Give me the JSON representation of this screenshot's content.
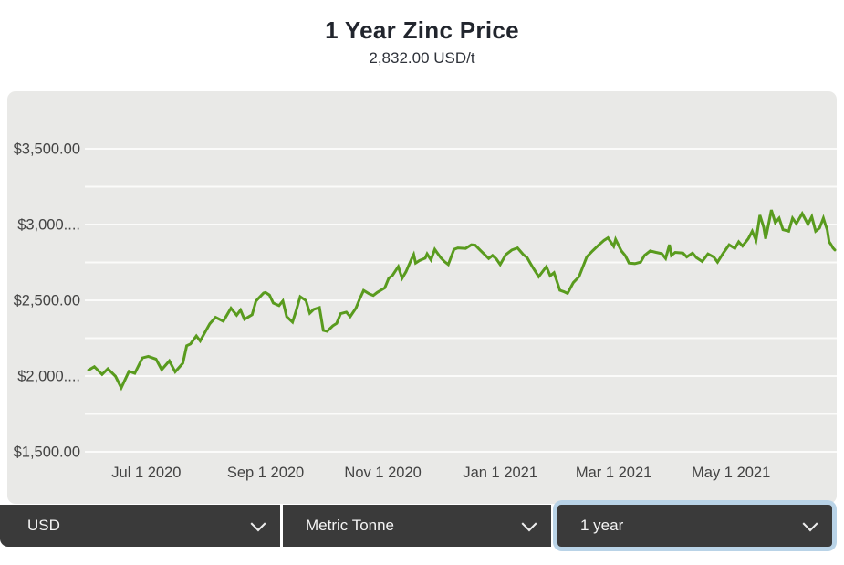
{
  "header": {
    "title": "1 Year Zinc Price",
    "subtitle": "2,832.00 USD/t"
  },
  "controls": {
    "currency": {
      "value": "USD"
    },
    "unit": {
      "value": "Metric Tonne"
    },
    "range": {
      "value": "1 year",
      "focused": true
    }
  },
  "colors": {
    "line": "#599b1e",
    "panel_bg": "#e9e9e7",
    "gridline": "#fbfbfa",
    "axis_text": "#434343",
    "title_text": "#21252d",
    "control_bg": "#3a3a3a",
    "control_text": "#f4f4f4",
    "focus_ring": "#b9d3e7"
  },
  "chart_data": {
    "type": "line",
    "title": "1 Year Zinc Price",
    "subtitle": "2,832.00 USD/t",
    "ylabel": "",
    "xlabel": "",
    "unit": "USD/t",
    "current_value": 2832.0,
    "ylim": [
      1500,
      3500
    ],
    "grid": true,
    "legend": "none",
    "grid_values": [
      3500,
      3250,
      3000,
      2750,
      2500,
      2250,
      2000,
      1750,
      1500
    ],
    "y_ticks": [
      {
        "value": 3500,
        "label": "$3,500.00"
      },
      {
        "value": 3000,
        "label": "$3,000...."
      },
      {
        "value": 2500,
        "label": "$2,500.00"
      },
      {
        "value": 2000,
        "label": "$2,000...."
      },
      {
        "value": 1500,
        "label": "$1,500.00"
      }
    ],
    "x_ticks": [
      {
        "date": "2020-07-01",
        "label": "Jul 1 2020"
      },
      {
        "date": "2020-09-01",
        "label": "Sep 1 2020"
      },
      {
        "date": "2020-11-01",
        "label": "Nov 1 2020"
      },
      {
        "date": "2021-01-01",
        "label": "Jan 1 2021"
      },
      {
        "date": "2021-03-01",
        "label": "Mar 1 2021"
      },
      {
        "date": "2021-05-01",
        "label": "May 1 2021"
      }
    ],
    "x_range": [
      "2020-05-31",
      "2021-06-24"
    ],
    "series": [
      {
        "name": "Zinc Price (USD/t)",
        "points": [
          [
            "2020-06-01",
            2040
          ],
          [
            "2020-06-04",
            2062
          ],
          [
            "2020-06-08",
            2010
          ],
          [
            "2020-06-11",
            2048
          ],
          [
            "2020-06-15",
            1998
          ],
          [
            "2020-06-18",
            1922
          ],
          [
            "2020-06-22",
            2032
          ],
          [
            "2020-06-25",
            2018
          ],
          [
            "2020-06-29",
            2120
          ],
          [
            "2020-07-02",
            2130
          ],
          [
            "2020-07-06",
            2112
          ],
          [
            "2020-07-09",
            2042
          ],
          [
            "2020-07-13",
            2100
          ],
          [
            "2020-07-16",
            2028
          ],
          [
            "2020-07-20",
            2085
          ],
          [
            "2020-07-22",
            2200
          ],
          [
            "2020-07-24",
            2212
          ],
          [
            "2020-07-27",
            2265
          ],
          [
            "2020-07-29",
            2232
          ],
          [
            "2020-08-03",
            2345
          ],
          [
            "2020-08-06",
            2388
          ],
          [
            "2020-08-10",
            2362
          ],
          [
            "2020-08-12",
            2405
          ],
          [
            "2020-08-14",
            2448
          ],
          [
            "2020-08-17",
            2402
          ],
          [
            "2020-08-19",
            2436
          ],
          [
            "2020-08-21",
            2375
          ],
          [
            "2020-08-25",
            2405
          ],
          [
            "2020-08-27",
            2495
          ],
          [
            "2020-08-31",
            2548
          ],
          [
            "2020-09-01",
            2552
          ],
          [
            "2020-09-03",
            2535
          ],
          [
            "2020-09-05",
            2482
          ],
          [
            "2020-09-08",
            2465
          ],
          [
            "2020-09-10",
            2496
          ],
          [
            "2020-09-12",
            2392
          ],
          [
            "2020-09-15",
            2356
          ],
          [
            "2020-09-17",
            2436
          ],
          [
            "2020-09-19",
            2524
          ],
          [
            "2020-09-22",
            2498
          ],
          [
            "2020-09-24",
            2415
          ],
          [
            "2020-09-26",
            2440
          ],
          [
            "2020-09-29",
            2452
          ],
          [
            "2020-10-01",
            2302
          ],
          [
            "2020-10-03",
            2295
          ],
          [
            "2020-10-06",
            2332
          ],
          [
            "2020-10-08",
            2348
          ],
          [
            "2020-10-10",
            2412
          ],
          [
            "2020-10-13",
            2422
          ],
          [
            "2020-10-15",
            2392
          ],
          [
            "2020-10-18",
            2448
          ],
          [
            "2020-10-20",
            2510
          ],
          [
            "2020-10-22",
            2565
          ],
          [
            "2020-10-25",
            2542
          ],
          [
            "2020-10-27",
            2532
          ],
          [
            "2020-10-29",
            2552
          ],
          [
            "2020-11-02",
            2582
          ],
          [
            "2020-11-04",
            2645
          ],
          [
            "2020-11-06",
            2665
          ],
          [
            "2020-11-09",
            2722
          ],
          [
            "2020-11-11",
            2645
          ],
          [
            "2020-11-13",
            2688
          ],
          [
            "2020-11-16",
            2775
          ],
          [
            "2020-11-17",
            2802
          ],
          [
            "2020-11-18",
            2746
          ],
          [
            "2020-11-20",
            2762
          ],
          [
            "2020-11-23",
            2778
          ],
          [
            "2020-11-24",
            2806
          ],
          [
            "2020-11-26",
            2766
          ],
          [
            "2020-11-28",
            2836
          ],
          [
            "2020-12-01",
            2782
          ],
          [
            "2020-12-03",
            2756
          ],
          [
            "2020-12-05",
            2736
          ],
          [
            "2020-12-08",
            2836
          ],
          [
            "2020-12-10",
            2846
          ],
          [
            "2020-12-14",
            2842
          ],
          [
            "2020-12-17",
            2866
          ],
          [
            "2020-12-19",
            2864
          ],
          [
            "2020-12-22",
            2826
          ],
          [
            "2020-12-26",
            2776
          ],
          [
            "2020-12-28",
            2796
          ],
          [
            "2020-12-30",
            2772
          ],
          [
            "2021-01-01",
            2736
          ],
          [
            "2021-01-04",
            2802
          ],
          [
            "2021-01-07",
            2832
          ],
          [
            "2021-01-10",
            2846
          ],
          [
            "2021-01-13",
            2802
          ],
          [
            "2021-01-15",
            2782
          ],
          [
            "2021-01-18",
            2716
          ],
          [
            "2021-01-21",
            2656
          ],
          [
            "2021-01-25",
            2722
          ],
          [
            "2021-01-27",
            2662
          ],
          [
            "2021-01-29",
            2682
          ],
          [
            "2021-02-01",
            2566
          ],
          [
            "2021-02-03",
            2558
          ],
          [
            "2021-02-05",
            2546
          ],
          [
            "2021-02-08",
            2616
          ],
          [
            "2021-02-11",
            2656
          ],
          [
            "2021-02-15",
            2786
          ],
          [
            "2021-02-18",
            2826
          ],
          [
            "2021-02-21",
            2862
          ],
          [
            "2021-02-24",
            2896
          ],
          [
            "2021-02-26",
            2912
          ],
          [
            "2021-03-01",
            2856
          ],
          [
            "2021-03-02",
            2902
          ],
          [
            "2021-03-05",
            2826
          ],
          [
            "2021-03-07",
            2796
          ],
          [
            "2021-03-09",
            2746
          ],
          [
            "2021-03-12",
            2742
          ],
          [
            "2021-03-15",
            2752
          ],
          [
            "2021-03-17",
            2796
          ],
          [
            "2021-03-20",
            2826
          ],
          [
            "2021-03-23",
            2816
          ],
          [
            "2021-03-26",
            2808
          ],
          [
            "2021-03-28",
            2776
          ],
          [
            "2021-03-30",
            2866
          ],
          [
            "2021-03-31",
            2796
          ],
          [
            "2021-04-02",
            2816
          ],
          [
            "2021-04-06",
            2812
          ],
          [
            "2021-04-08",
            2786
          ],
          [
            "2021-04-11",
            2812
          ],
          [
            "2021-04-13",
            2782
          ],
          [
            "2021-04-16",
            2756
          ],
          [
            "2021-04-19",
            2806
          ],
          [
            "2021-04-22",
            2786
          ],
          [
            "2021-04-24",
            2752
          ],
          [
            "2021-04-27",
            2812
          ],
          [
            "2021-04-30",
            2866
          ],
          [
            "2021-05-03",
            2842
          ],
          [
            "2021-05-05",
            2886
          ],
          [
            "2021-05-07",
            2858
          ],
          [
            "2021-05-10",
            2906
          ],
          [
            "2021-05-12",
            2956
          ],
          [
            "2021-05-14",
            2896
          ],
          [
            "2021-05-16",
            3062
          ],
          [
            "2021-05-18",
            2982
          ],
          [
            "2021-05-19",
            2906
          ],
          [
            "2021-05-22",
            3096
          ],
          [
            "2021-05-24",
            3012
          ],
          [
            "2021-05-26",
            3042
          ],
          [
            "2021-05-28",
            2966
          ],
          [
            "2021-05-31",
            2956
          ],
          [
            "2021-06-02",
            3042
          ],
          [
            "2021-06-04",
            3006
          ],
          [
            "2021-06-07",
            3072
          ],
          [
            "2021-06-10",
            3002
          ],
          [
            "2021-06-12",
            3052
          ],
          [
            "2021-06-14",
            2956
          ],
          [
            "2021-06-16",
            2976
          ],
          [
            "2021-06-18",
            3042
          ],
          [
            "2021-06-19",
            3002
          ],
          [
            "2021-06-20",
            2966
          ],
          [
            "2021-06-21",
            2886
          ],
          [
            "2021-06-22",
            2868
          ],
          [
            "2021-06-23",
            2846
          ],
          [
            "2021-06-24",
            2832
          ]
        ]
      }
    ]
  }
}
